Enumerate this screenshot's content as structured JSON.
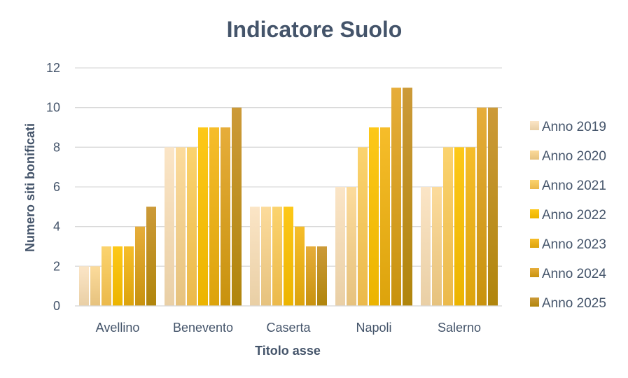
{
  "chart_data": {
    "type": "bar",
    "title": "Indicatore Suolo",
    "xlabel": "Titolo asse",
    "ylabel": "Numero siti bonificati",
    "ylim": [
      0,
      12
    ],
    "yticks": [
      0,
      2,
      4,
      6,
      8,
      10,
      12
    ],
    "grid": true,
    "legend_position": "right",
    "categories": [
      "Avellino",
      "Benevento",
      "Caserta",
      "Napoli",
      "Salerno"
    ],
    "series": [
      {
        "name": "Anno 2019",
        "values": [
          2,
          8,
          5,
          6,
          6
        ],
        "color_top": "#fbe5c6",
        "color_bottom": "#e9cfa5"
      },
      {
        "name": "Anno 2020",
        "values": [
          2,
          8,
          5,
          6,
          6
        ],
        "color_top": "#fcdb9b",
        "color_bottom": "#e6c27e"
      },
      {
        "name": "Anno 2021",
        "values": [
          3,
          8,
          5,
          8,
          8
        ],
        "color_top": "#fbd36e",
        "color_bottom": "#ebb94b"
      },
      {
        "name": "Anno 2022",
        "values": [
          3,
          9,
          5,
          9,
          8
        ],
        "color_top": "#fdc818",
        "color_bottom": "#ecb400"
      },
      {
        "name": "Anno 2023",
        "values": [
          3,
          9,
          4,
          9,
          8
        ],
        "color_top": "#f6bd2a",
        "color_bottom": "#dca30c"
      },
      {
        "name": "Anno 2024",
        "values": [
          4,
          9,
          3,
          11,
          10
        ],
        "color_top": "#e6ad3a",
        "color_bottom": "#c8920e"
      },
      {
        "name": "Anno 2025",
        "values": [
          5,
          10,
          3,
          11,
          10
        ],
        "color_top": "#cc9a38",
        "color_bottom": "#b0850c"
      }
    ],
    "colors": {
      "grid": "#d9d9d9",
      "axis": "#d9d9d9",
      "text": "#44546a"
    }
  }
}
